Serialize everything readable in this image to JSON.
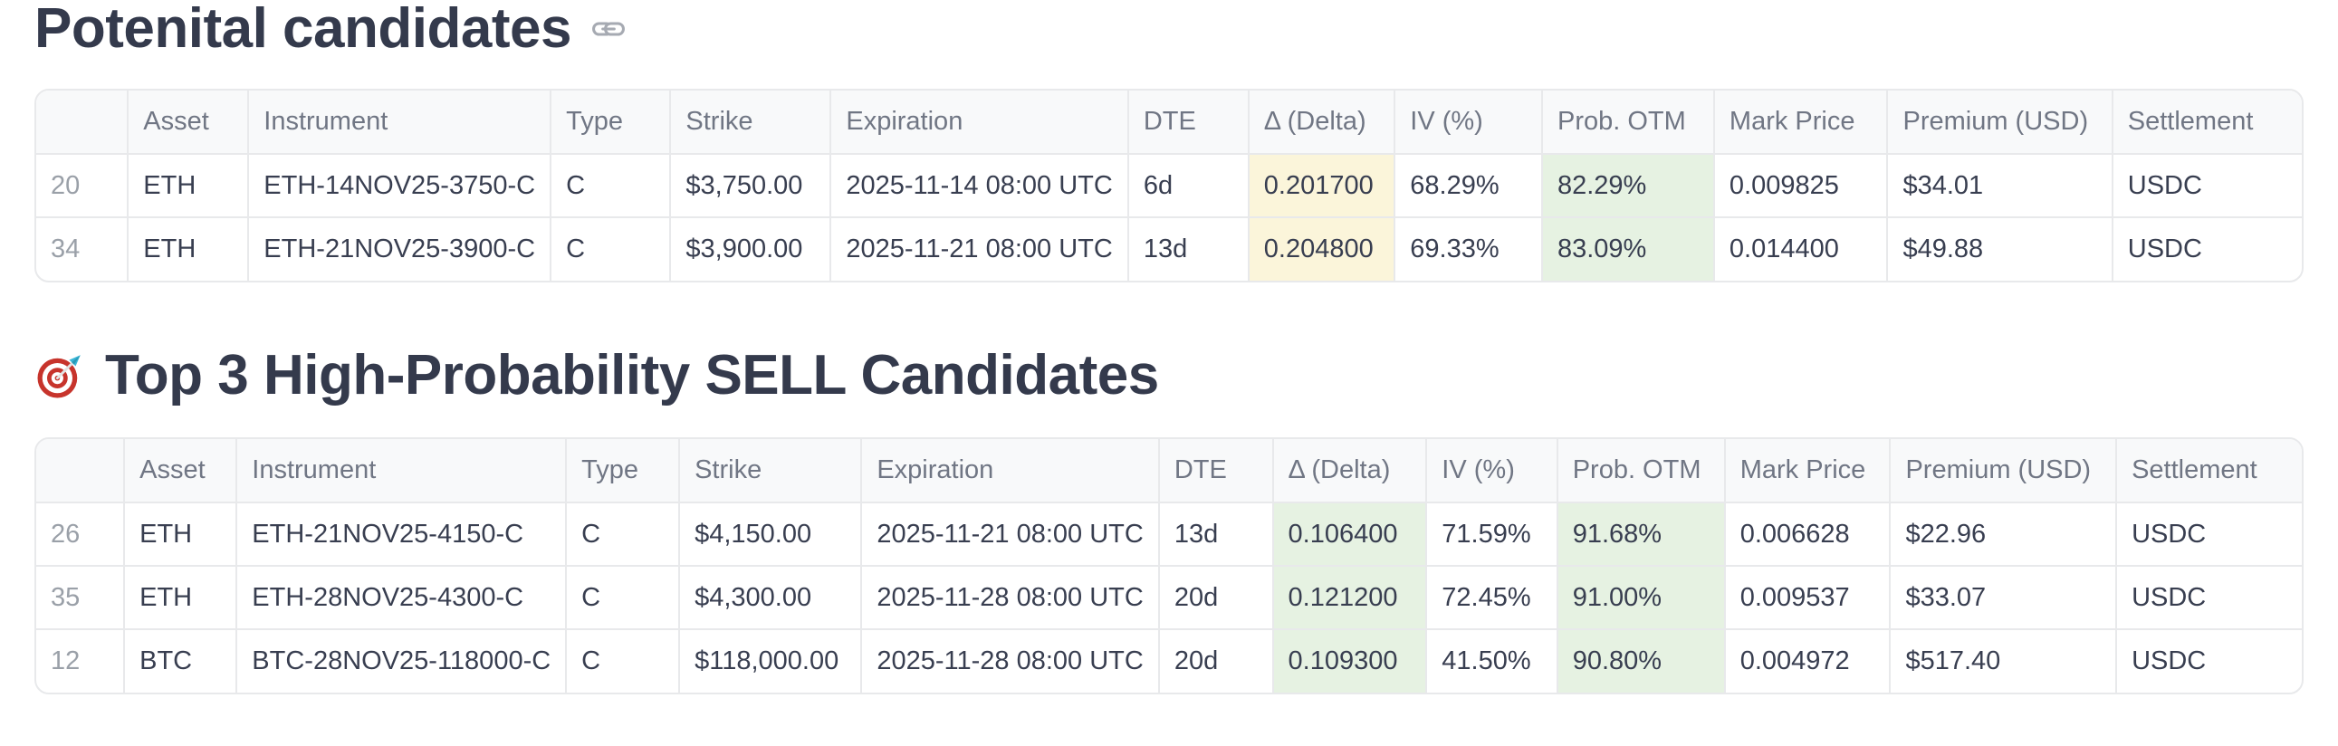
{
  "colors": {
    "yellow": "#fbf5da",
    "green": "#e6f2e2",
    "border": "#e8e9eb",
    "header_bg": "#f8f9fa"
  },
  "fields": [
    "index",
    "asset",
    "instrument",
    "type",
    "strike",
    "expiration",
    "dte",
    "delta",
    "iv",
    "prob_otm",
    "mark_price",
    "premium",
    "settlement"
  ],
  "sections": [
    {
      "heading": "Potenital candidates",
      "anchor_icon": "link-icon",
      "table": {
        "columns": [
          "",
          "Asset",
          "Instrument",
          "Type",
          "Strike",
          "Expiration",
          "DTE",
          "Δ (Delta)",
          "IV (%)",
          "Prob. OTM",
          "Mark Price",
          "Premium (USD)",
          "Settlement"
        ],
        "delta_highlight": "yellow",
        "prob_otm_highlight": "green",
        "rows": [
          {
            "index": "20",
            "asset": "ETH",
            "instrument": "ETH-14NOV25-3750-C",
            "type": "C",
            "strike": "$3,750.00",
            "expiration": "2025-11-14 08:00 UTC",
            "dte": "6d",
            "delta": "0.201700",
            "iv": "68.29%",
            "prob_otm": "82.29%",
            "mark_price": "0.009825",
            "premium": "$34.01",
            "settlement": "USDC"
          },
          {
            "index": "34",
            "asset": "ETH",
            "instrument": "ETH-21NOV25-3900-C",
            "type": "C",
            "strike": "$3,900.00",
            "expiration": "2025-11-21 08:00 UTC",
            "dte": "13d",
            "delta": "0.204800",
            "iv": "69.33%",
            "prob_otm": "83.09%",
            "mark_price": "0.014400",
            "premium": "$49.88",
            "settlement": "USDC"
          }
        ]
      }
    },
    {
      "heading": "Top 3 High-Probability SELL Candidates",
      "heading_emoji": "🎯",
      "emoji_icon": "target-dart-icon",
      "table": {
        "columns": [
          "",
          "Asset",
          "Instrument",
          "Type",
          "Strike",
          "Expiration",
          "DTE",
          "Δ (Delta)",
          "IV (%)",
          "Prob. OTM",
          "Mark Price",
          "Premium (USD)",
          "Settlement"
        ],
        "delta_highlight": "green",
        "prob_otm_highlight": "green",
        "rows": [
          {
            "index": "26",
            "asset": "ETH",
            "instrument": "ETH-21NOV25-4150-C",
            "type": "C",
            "strike": "$4,150.00",
            "expiration": "2025-11-21 08:00 UTC",
            "dte": "13d",
            "delta": "0.106400",
            "iv": "71.59%",
            "prob_otm": "91.68%",
            "mark_price": "0.006628",
            "premium": "$22.96",
            "settlement": "USDC"
          },
          {
            "index": "35",
            "asset": "ETH",
            "instrument": "ETH-28NOV25-4300-C",
            "type": "C",
            "strike": "$4,300.00",
            "expiration": "2025-11-28 08:00 UTC",
            "dte": "20d",
            "delta": "0.121200",
            "iv": "72.45%",
            "prob_otm": "91.00%",
            "mark_price": "0.009537",
            "premium": "$33.07",
            "settlement": "USDC"
          },
          {
            "index": "12",
            "asset": "BTC",
            "instrument": "BTC-28NOV25-118000-C",
            "type": "C",
            "strike": "$118,000.00",
            "expiration": "2025-11-28 08:00 UTC",
            "dte": "20d",
            "delta": "0.109300",
            "iv": "41.50%",
            "prob_otm": "90.80%",
            "mark_price": "0.004972",
            "premium": "$517.40",
            "settlement": "USDC"
          }
        ]
      }
    }
  ]
}
